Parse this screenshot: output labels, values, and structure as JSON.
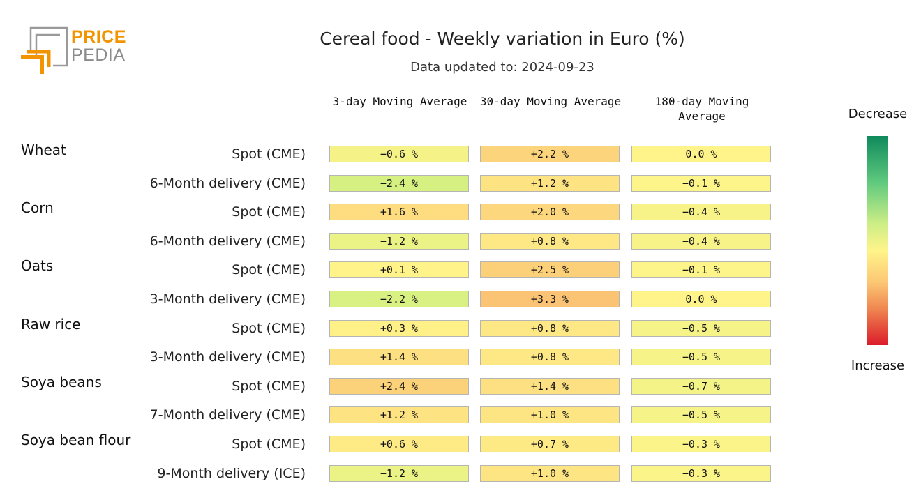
{
  "logo": {
    "word1": "PRICE",
    "word2": "PEDIA"
  },
  "title": "Cereal food - Weekly variation in Euro (%)",
  "subtitle": "Data updated to: 2024-09-23",
  "legend": {
    "top": "Decrease",
    "bottom": "Increase"
  },
  "colors": {
    "strong_decrease": "#0f8a5c",
    "neutral": "#fff48a",
    "strong_increase": "#db1b2a"
  },
  "chart_data": {
    "type": "table",
    "title": "Cereal food - Weekly variation in Euro (%)",
    "subtitle": "Data updated to: 2024-09-23",
    "columns": [
      "3-day Moving Average",
      "30-day Moving Average",
      "180-day Moving Average"
    ],
    "groups": [
      {
        "name": "Wheat",
        "rows": [
          {
            "label": "Spot (CME)",
            "values": [
              "−0.6 %",
              "+2.2 %",
              "0.0 %"
            ]
          },
          {
            "label": "6-Month delivery (CME)",
            "values": [
              "−2.4 %",
              "+1.2 %",
              "−0.1 %"
            ]
          }
        ]
      },
      {
        "name": "Corn",
        "rows": [
          {
            "label": "Spot (CME)",
            "values": [
              "+1.6 %",
              "+2.0 %",
              "−0.4 %"
            ]
          },
          {
            "label": "6-Month delivery (CME)",
            "values": [
              "−1.2 %",
              "+0.8 %",
              "−0.4 %"
            ]
          }
        ]
      },
      {
        "name": "Oats",
        "rows": [
          {
            "label": "Spot (CME)",
            "values": [
              "+0.1 %",
              "+2.5 %",
              "−0.1 %"
            ]
          },
          {
            "label": "3-Month delivery (CME)",
            "values": [
              "−2.2 %",
              "+3.3 %",
              "0.0 %"
            ]
          }
        ]
      },
      {
        "name": "Raw rice",
        "rows": [
          {
            "label": "Spot (CME)",
            "values": [
              "+0.3 %",
              "+0.8 %",
              "−0.5 %"
            ]
          },
          {
            "label": "3-Month delivery (CME)",
            "values": [
              "+1.4 %",
              "+0.8 %",
              "−0.5 %"
            ]
          }
        ]
      },
      {
        "name": "Soya beans",
        "rows": [
          {
            "label": "Spot (CME)",
            "values": [
              "+2.4 %",
              "+1.4 %",
              "−0.7 %"
            ]
          },
          {
            "label": "7-Month delivery (CME)",
            "values": [
              "+1.2 %",
              "+1.0 %",
              "−0.5 %"
            ]
          }
        ]
      },
      {
        "name": "Soya bean flour",
        "rows": [
          {
            "label": "Spot (CME)",
            "values": [
              "+0.6 %",
              "+0.7 %",
              "−0.3 %"
            ]
          },
          {
            "label": "9-Month delivery (ICE)",
            "values": [
              "−1.2 %",
              "+1.0 %",
              "−0.3 %"
            ]
          }
        ]
      }
    ]
  }
}
